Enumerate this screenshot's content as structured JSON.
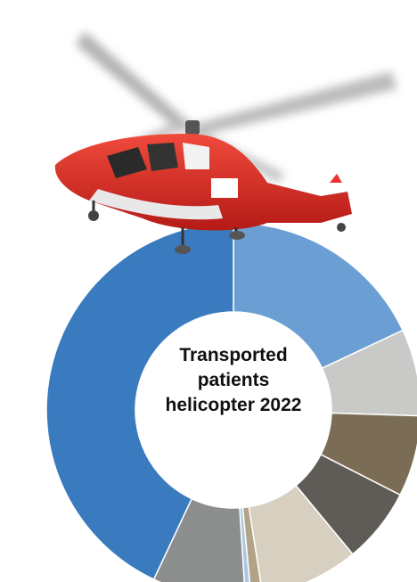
{
  "chart_data": {
    "type": "donut",
    "title": "Transported patients helicopter 2022",
    "categories": [
      null,
      null,
      null,
      null,
      null,
      null,
      null,
      null,
      null
    ],
    "values": [
      18,
      7.5,
      7,
      6.5,
      8.5,
      1,
      0.5,
      8,
      43
    ],
    "colors": [
      "#6b9fd4",
      "#c9c9c8",
      "#7a6c55",
      "#5f5b57",
      "#d7cfbf",
      "#b2a386",
      "#a9c7e6",
      "#8c8e8d",
      "#3a7bbf"
    ],
    "start_angle": 0,
    "direction": "clockwise"
  }
}
